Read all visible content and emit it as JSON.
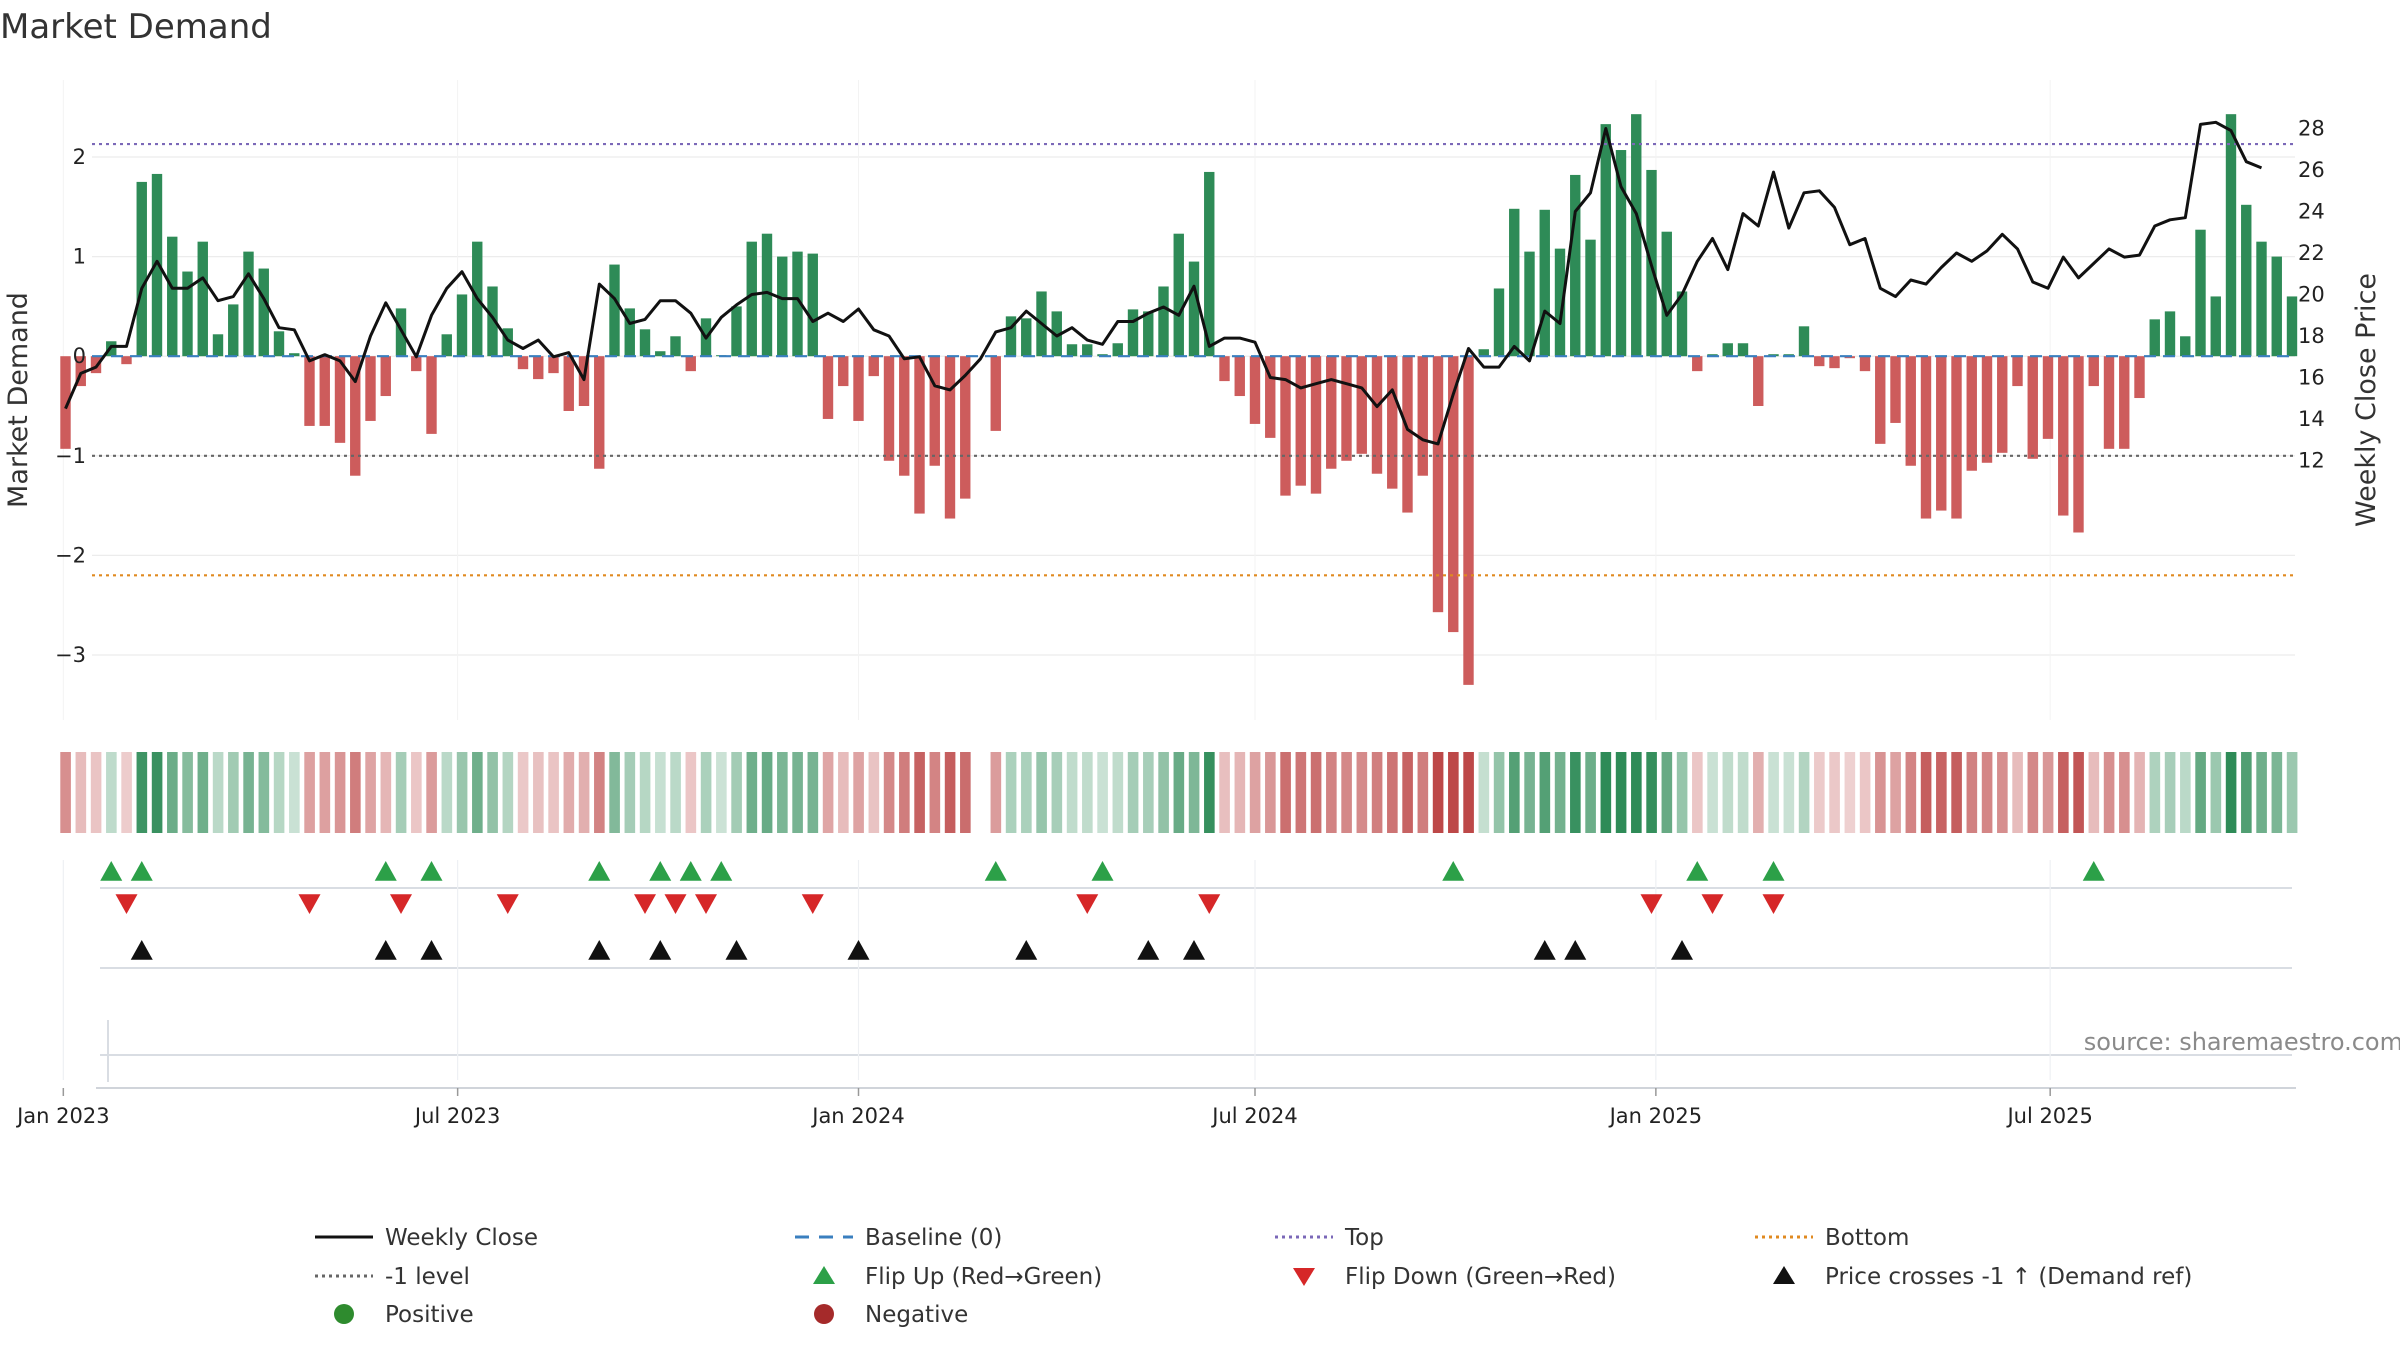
{
  "chart_data": {
    "type": "bar",
    "title": "Market Demand",
    "ylabel": "Market Demand",
    "y2label": "Weekly Close Price",
    "ylim": [
      -3.6,
      2.75
    ],
    "y2lim": [
      11.5,
      29.5
    ],
    "yticks": [
      "2",
      "1",
      "0",
      "−1",
      "−2",
      "−3"
    ],
    "y2ticks": [
      "28",
      "26",
      "24",
      "22",
      "20",
      "18",
      "16",
      "14",
      "12"
    ],
    "xticks": [
      "Jan 2023",
      "Jul 2023",
      "Jan 2024",
      "Jul 2024",
      "Jan 2025",
      "Jul 2025"
    ],
    "start_date": "2023-01-02",
    "week_count": 145,
    "reference_lines": {
      "top": 2.13,
      "minus_one": -1.0,
      "bottom": -2.2,
      "baseline": 0
    },
    "colors": {
      "positive": "#2e8b57",
      "negative": "#cd5c5c",
      "price": "#111111",
      "top": "#7b68b8",
      "minus_one": "#666666",
      "bottom": "#e08a20",
      "baseline": "#3a7fbf",
      "flip_up": "#2ca048",
      "flip_down": "#d62728",
      "cross": "#111111",
      "dot_positive": "#2e8b2e",
      "dot_negative": "#a52a2a"
    },
    "series": [
      {
        "name": "Market Demand",
        "type": "bar",
        "values": [
          -0.93,
          -0.3,
          -0.17,
          0.15,
          -0.08,
          1.75,
          1.83,
          1.2,
          0.85,
          1.15,
          0.22,
          0.52,
          1.05,
          0.88,
          0.25,
          0.03,
          -0.7,
          -0.7,
          -0.87,
          -1.2,
          -0.65,
          -0.4,
          0.48,
          -0.15,
          -0.78,
          0.22,
          0.62,
          1.15,
          0.7,
          0.28,
          -0.13,
          -0.23,
          -0.17,
          -0.55,
          -0.5,
          -1.13,
          0.92,
          0.48,
          0.27,
          0.05,
          0.2,
          -0.15,
          0.38,
          0.01,
          0.5,
          1.15,
          1.23,
          1.0,
          1.05,
          1.03,
          -0.63,
          -0.3,
          -0.65,
          -0.2,
          -1.05,
          -1.2,
          -1.58,
          -1.1,
          -1.63,
          -1.43,
          null,
          -0.75,
          0.4,
          0.38,
          0.65,
          0.45,
          0.12,
          0.12,
          0.02,
          0.13,
          0.47,
          0.45,
          0.7,
          1.23,
          0.95,
          1.85,
          -0.25,
          -0.4,
          -0.68,
          -0.82,
          -1.4,
          -1.3,
          -1.38,
          -1.13,
          -1.05,
          -0.98,
          -1.18,
          -1.33,
          -1.57,
          -1.2,
          -2.57,
          -2.77,
          -3.3,
          0.07,
          0.68,
          1.48,
          1.05,
          1.47,
          1.08,
          1.82,
          1.17,
          2.33,
          2.07,
          2.43,
          1.87,
          1.25,
          0.65,
          -0.15,
          0.02,
          0.13,
          0.13,
          -0.5,
          0.02,
          0.02,
          0.3,
          -0.1,
          -0.12,
          -0.02,
          -0.15,
          -0.88,
          -0.67,
          -1.1,
          -1.63,
          -1.55,
          -1.63,
          -1.15,
          -1.07,
          -0.97,
          -0.3,
          -1.03,
          -0.83,
          -1.6,
          -1.77,
          -0.3,
          -0.93,
          -0.93,
          -0.42,
          0.37,
          0.45,
          0.2,
          1.27,
          0.6,
          2.43,
          1.52,
          1.15,
          1.0,
          0.6
        ]
      },
      {
        "name": "Weekly Close",
        "type": "line",
        "axis": "right",
        "values": [
          14.5,
          16.2,
          16.5,
          17.5,
          17.5,
          20.3,
          21.6,
          20.3,
          20.3,
          20.8,
          19.7,
          19.9,
          21.0,
          19.8,
          18.4,
          18.3,
          16.8,
          17.1,
          16.8,
          15.8,
          18.0,
          19.6,
          18.3,
          17.0,
          19.0,
          20.3,
          21.1,
          19.8,
          18.9,
          17.8,
          17.4,
          17.8,
          17.0,
          17.2,
          15.9,
          20.5,
          19.8,
          18.6,
          18.8,
          19.7,
          19.7,
          19.1,
          17.9,
          18.9,
          19.5,
          20.0,
          20.1,
          19.8,
          19.8,
          18.7,
          19.1,
          18.7,
          19.3,
          18.3,
          18.0,
          16.9,
          17.0,
          15.6,
          15.4,
          16.1,
          16.9,
          18.2,
          18.4,
          19.2,
          18.6,
          18.0,
          18.4,
          17.8,
          17.6,
          18.7,
          18.7,
          19.1,
          19.4,
          19.0,
          20.4,
          17.5,
          17.9,
          17.9,
          17.7,
          16.0,
          15.9,
          15.5,
          15.7,
          15.9,
          15.7,
          15.5,
          14.6,
          15.4,
          13.5,
          13.0,
          12.8,
          15.2,
          17.4,
          16.5,
          16.5,
          17.5,
          16.8,
          19.2,
          18.6,
          24.0,
          24.9,
          28.0,
          25.2,
          23.9,
          21.4,
          19.0,
          20.0,
          21.6,
          22.7,
          21.2,
          23.9,
          23.3,
          25.9,
          23.2,
          24.9,
          25.0,
          24.2,
          22.4,
          22.7,
          20.3,
          19.9,
          20.7,
          20.5,
          21.3,
          22.0,
          21.6,
          22.1,
          22.9,
          22.2,
          20.6,
          20.3,
          21.8,
          20.8,
          21.5,
          22.2,
          21.8,
          21.9,
          23.3,
          23.6,
          23.7,
          28.2,
          28.3,
          27.9,
          26.4,
          26.1
        ]
      },
      {
        "name": "Demand Intensity",
        "type": "strip",
        "values": [
          -0.93,
          -0.3,
          -0.17,
          0.15,
          -0.08,
          1.75,
          1.83,
          1.2,
          0.85,
          1.15,
          0.22,
          0.52,
          1.05,
          0.88,
          0.25,
          0.03,
          -0.7,
          -0.7,
          -0.87,
          -1.2,
          -0.65,
          -0.4,
          0.48,
          -0.15,
          -0.78,
          0.22,
          0.62,
          1.15,
          0.7,
          0.28,
          -0.13,
          -0.23,
          -0.17,
          -0.55,
          -0.5,
          -1.13,
          0.92,
          0.48,
          0.27,
          0.05,
          0.2,
          -0.15,
          0.38,
          0.01,
          0.5,
          1.15,
          1.23,
          1.0,
          1.05,
          1.03,
          -0.63,
          -0.3,
          -0.65,
          -0.2,
          -1.05,
          -1.2,
          -1.58,
          -1.1,
          -1.63,
          -1.43,
          null,
          -0.75,
          0.4,
          0.38,
          0.65,
          0.45,
          0.12,
          0.12,
          0.02,
          0.13,
          0.47,
          0.45,
          0.7,
          1.23,
          0.95,
          1.85,
          -0.25,
          -0.4,
          -0.68,
          -0.82,
          -1.4,
          -1.3,
          -1.38,
          -1.13,
          -1.05,
          -0.98,
          -1.18,
          -1.33,
          -1.57,
          -1.2,
          -2.57,
          -2.77,
          -3.3,
          0.07,
          0.68,
          1.48,
          1.05,
          1.47,
          1.08,
          1.82,
          1.17,
          2.33,
          2.07,
          2.43,
          1.87,
          1.25,
          0.65,
          -0.15,
          0.02,
          0.13,
          0.13,
          -0.5,
          0.02,
          0.02,
          0.3,
          -0.1,
          -0.12,
          -0.02,
          -0.15,
          -0.88,
          -0.67,
          -1.1,
          -1.63,
          -1.55,
          -1.63,
          -1.15,
          -1.07,
          -0.97,
          -0.3,
          -1.03,
          -0.83,
          -1.6,
          -1.77,
          -0.3,
          -0.93,
          -0.93,
          -0.42,
          0.37,
          0.45,
          0.2,
          1.27,
          0.6,
          2.43,
          1.52,
          1.15,
          1.0,
          0.6
        ]
      }
    ],
    "events": {
      "flip_up_weeks": [
        3,
        5,
        21,
        24,
        35,
        39,
        41,
        43,
        61,
        68,
        91,
        107,
        112,
        133
      ],
      "flip_down_weeks": [
        4,
        16,
        22,
        29,
        38,
        40,
        42,
        49,
        67,
        75,
        104,
        108,
        112
      ],
      "price_cross_up_weeks": [
        5,
        21,
        24,
        35,
        39,
        44,
        52,
        63,
        71,
        74,
        97,
        99,
        106
      ]
    },
    "legend": [
      {
        "label": "Weekly Close",
        "marker": "solid-line",
        "color_key": "price"
      },
      {
        "label": "Baseline (0)",
        "marker": "dashed-line",
        "color_key": "baseline"
      },
      {
        "label": "Top",
        "marker": "dotted-line",
        "color_key": "top"
      },
      {
        "label": "Bottom",
        "marker": "dotted-line",
        "color_key": "bottom"
      },
      {
        "label": "-1 level",
        "marker": "dotted-line",
        "color_key": "minus_one"
      },
      {
        "label": "Flip Up (Red→Green)",
        "marker": "triangle-up",
        "color_key": "flip_up"
      },
      {
        "label": "Flip Down (Green→Red)",
        "marker": "triangle-down",
        "color_key": "flip_down"
      },
      {
        "label": "Price crosses -1 ↑ (Demand ref)",
        "marker": "triangle-up",
        "color_key": "cross"
      },
      {
        "label": "Positive",
        "marker": "circle",
        "color_key": "dot_positive"
      },
      {
        "label": "Negative",
        "marker": "circle",
        "color_key": "dot_negative"
      }
    ],
    "source": "source: sharemaestro.com"
  }
}
